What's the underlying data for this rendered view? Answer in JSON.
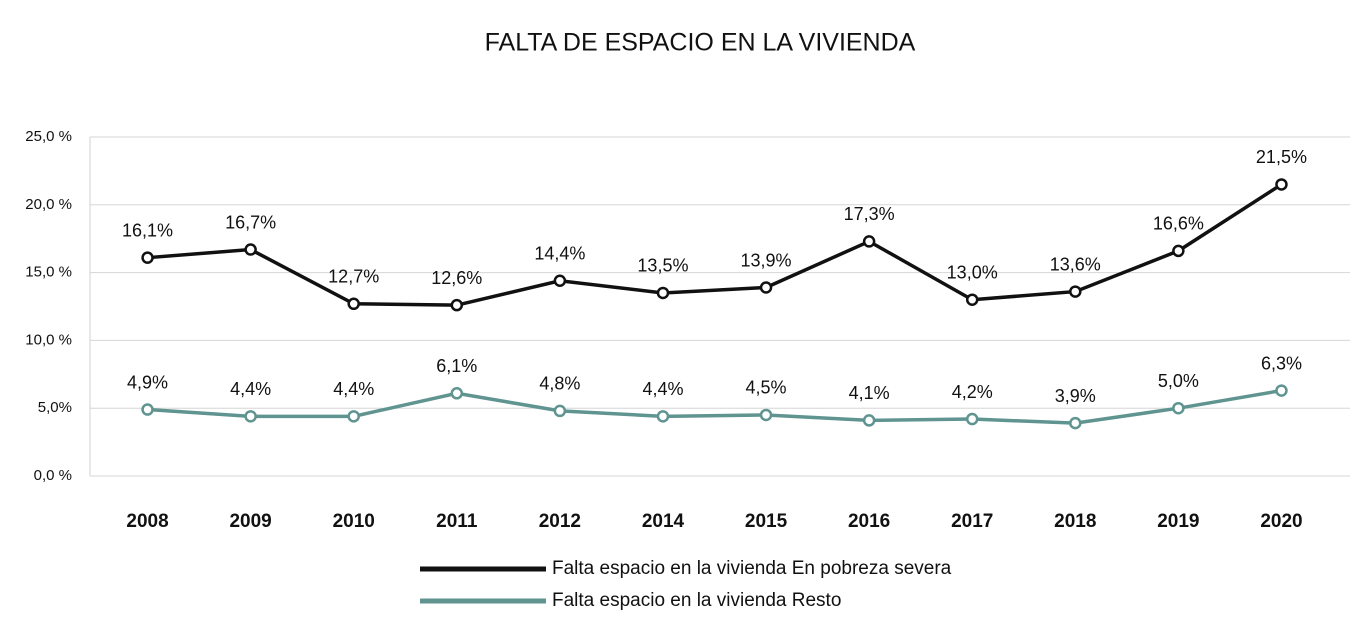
{
  "chart_data": {
    "type": "line",
    "title": "FALTA DE ESPACIO EN LA VIVIENDA",
    "categories": [
      "2008",
      "2009",
      "2010",
      "2011",
      "2012",
      "2014",
      "2015",
      "2016",
      "2017",
      "2018",
      "2019",
      "2020"
    ],
    "series": [
      {
        "name": "Falta espacio en la vivienda En pobreza severa",
        "color": "#111111",
        "values": [
          16.1,
          16.7,
          12.7,
          12.6,
          14.4,
          13.5,
          13.9,
          17.3,
          13.0,
          13.6,
          16.6,
          21.5
        ],
        "value_labels": [
          "16,1%",
          "16,7%",
          "12,7%",
          "12,6%",
          "14,4%",
          "13,5%",
          "13,9%",
          "17,3%",
          "13,0%",
          "13,6%",
          "16,6%",
          "21,5%"
        ]
      },
      {
        "name": "Falta espacio en la vivienda Resto",
        "color": "#5f9490",
        "values": [
          4.9,
          4.4,
          4.4,
          6.1,
          4.8,
          4.4,
          4.5,
          4.1,
          4.2,
          3.9,
          5.0,
          6.3
        ],
        "value_labels": [
          "4,9%",
          "4,4%",
          "4,4%",
          "6,1%",
          "4,8%",
          "4,4%",
          "4,5%",
          "4,1%",
          "4,2%",
          "3,9%",
          "5,0%",
          "6,3%"
        ]
      }
    ],
    "ylim": [
      0,
      25
    ],
    "yticks": [
      {
        "value": 0,
        "label": "0,0 %"
      },
      {
        "value": 5,
        "label": "5,0%"
      },
      {
        "value": 10,
        "label": "10,0 %"
      },
      {
        "value": 15,
        "label": "15,0 %"
      },
      {
        "value": 20,
        "label": "20,0 %"
      },
      {
        "value": 25,
        "label": "25,0 %"
      }
    ],
    "grid": true,
    "legend": "bottom"
  }
}
